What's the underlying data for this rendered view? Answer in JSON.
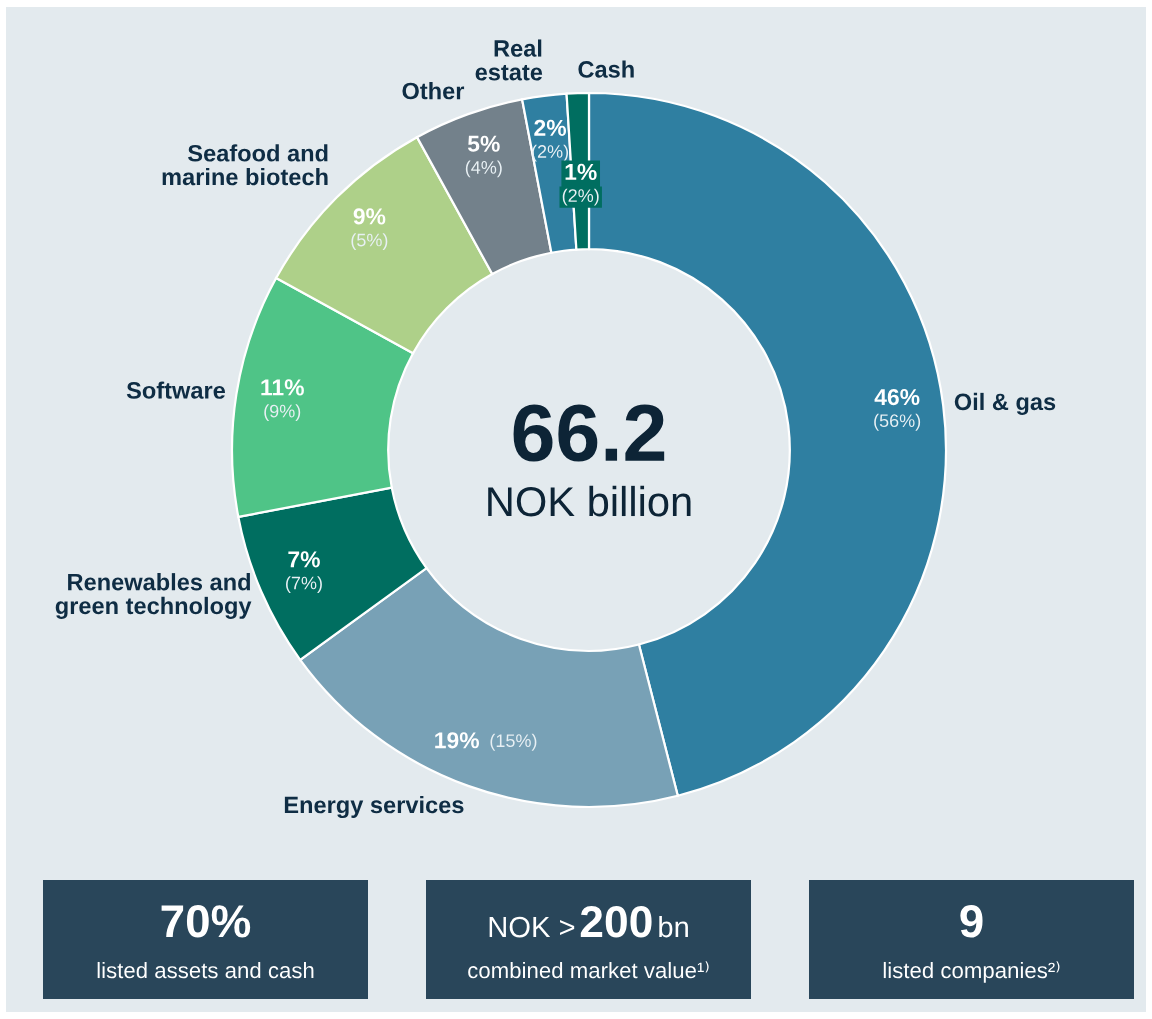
{
  "chart_data": [
    {
      "type": "donut",
      "categories": [
        "Oil & gas",
        "Energy services",
        "Renewables and\ngreen technology",
        "Software",
        "Seafood and\nmarine biotech",
        "Other",
        "Real\nestate",
        "Cash"
      ],
      "values": [
        46,
        19,
        7,
        11,
        9,
        5,
        2,
        1
      ],
      "colors": [
        "#2f7fa1",
        "#78a1b6",
        "#006e60",
        "#4fc487",
        "#aed089",
        "#73818b",
        "#2f7fa1",
        "#006e60"
      ],
      "value_labels": [
        "46%\n(56%)",
        "19% (15%)",
        "7%\n(7%)",
        "11%\n(9%)",
        "9%\n(5%)",
        "5%\n(4%)",
        "2%\n(2%)",
        "1%\n(2%)"
      ],
      "annotations": [
        "66.2",
        "NOK billion"
      ]
    },
    {
      "type": "other",
      "annotations": [
        "70%",
        "listed assets and cash"
      ]
    },
    {
      "type": "other",
      "annotations": [
        "NOK >",
        "200",
        "bn",
        "combined market value¹⁾"
      ]
    },
    {
      "type": "other",
      "annotations": [
        "9",
        "listed companies²⁾"
      ]
    }
  ]
}
